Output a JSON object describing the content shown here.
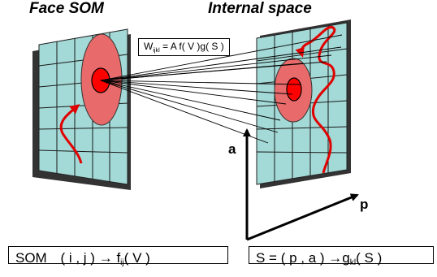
{
  "titles": {
    "left": "Face SOM",
    "right": "Internal space"
  },
  "weight_formula": {
    "w": "W",
    "w_sub": "ijkl",
    "rest": "= A f( V )g( S )"
  },
  "axes": {
    "vertical": "a",
    "horizontal": "p"
  },
  "som_mapping": {
    "prefix": "SOM",
    "args": "( i , j )",
    "arrow": "→",
    "f": "f",
    "f_sub": "ij",
    "f_arg": "( V )"
  },
  "s_mapping": {
    "lhs": "S = ( p , a )",
    "arrow": "→",
    "g": "g",
    "g_sub": "kl",
    "g_arg": "( S )"
  },
  "colors": {
    "grid_fill": "#a3d9d6",
    "grid_shadow": "#333333",
    "outer_blob": "#e86a6a",
    "inner_blob": "#ff0000",
    "curve": "#e00000"
  }
}
